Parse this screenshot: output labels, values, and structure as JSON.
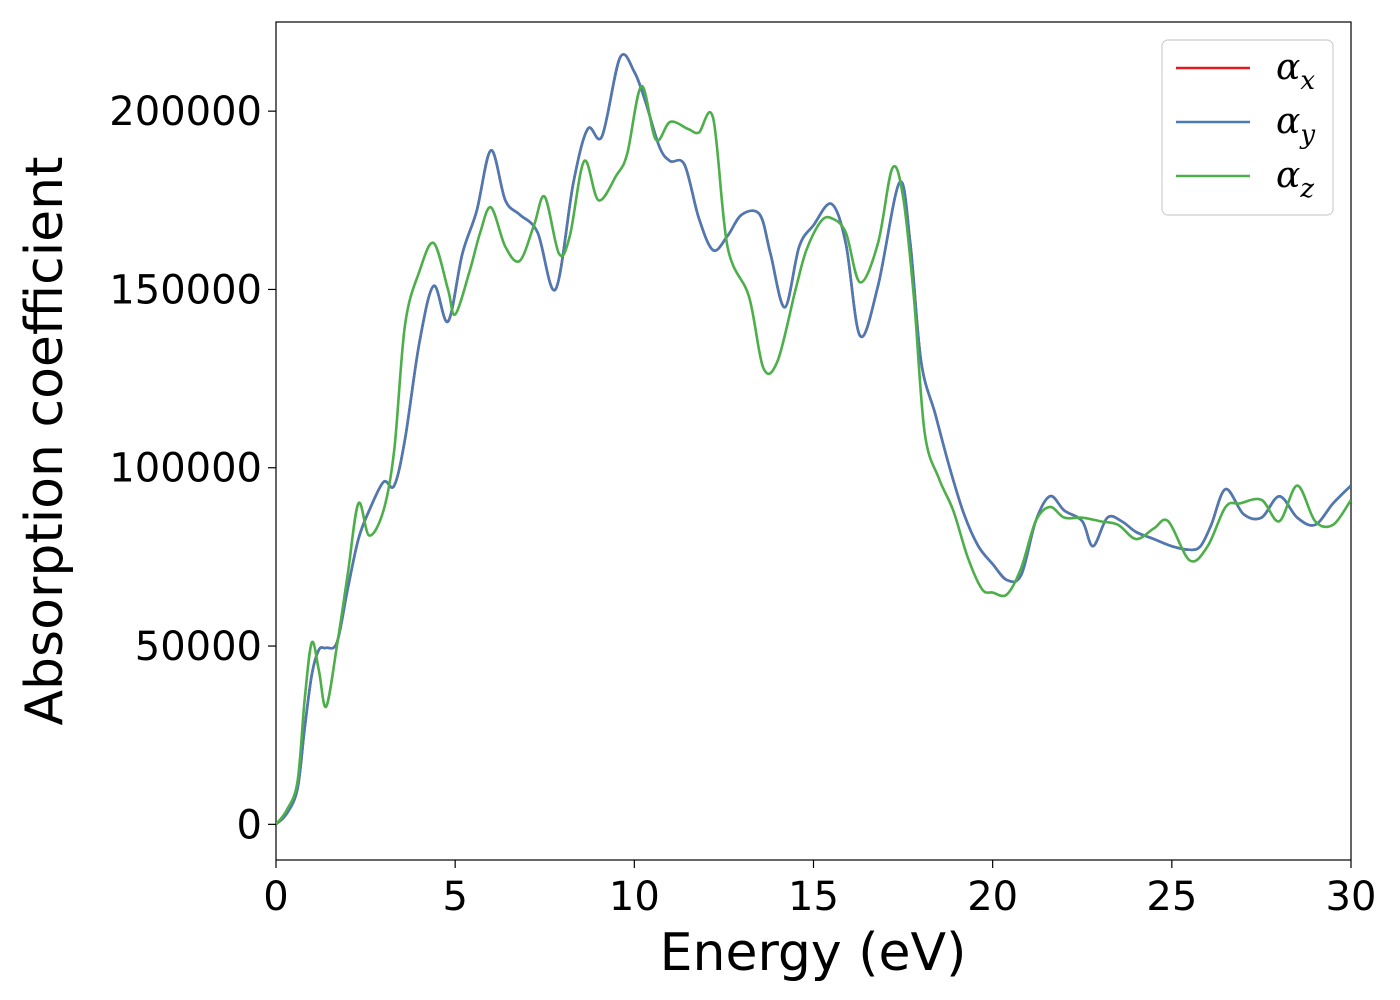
{
  "chart_data": {
    "type": "line",
    "xlabel": "Energy (eV)",
    "ylabel": "Absorption coefficient",
    "xlim": [
      0,
      30
    ],
    "ylim": [
      -10000,
      225000
    ],
    "x_ticks": [
      "0",
      "5",
      "10",
      "15",
      "20",
      "25",
      "30"
    ],
    "y_ticks": [
      "0",
      "50000",
      "100000",
      "150000",
      "200000"
    ],
    "grid": false,
    "legend_position": "top-right",
    "series": [
      {
        "name": "α",
        "subscript": "x",
        "color": "#e41a1c",
        "x": [
          0,
          0.3,
          0.6,
          0.8,
          1.0,
          1.2,
          1.4,
          1.7,
          2.0,
          2.3,
          2.6,
          3.0,
          3.3,
          3.6,
          4.0,
          4.4,
          4.8,
          5.2,
          5.6,
          6.0,
          6.4,
          6.8,
          7.3,
          7.8,
          8.3,
          8.7,
          9.1,
          9.6,
          10.0,
          10.3,
          10.7,
          11.0,
          11.4,
          11.8,
          12.2,
          12.6,
          13.0,
          13.5,
          13.8,
          14.2,
          14.6,
          15.0,
          15.5,
          15.9,
          16.3,
          16.8,
          17.4,
          17.7,
          18.0,
          18.4,
          18.8,
          19.2,
          19.6,
          20.0,
          20.4,
          20.8,
          21.2,
          21.6,
          22.0,
          22.5,
          22.8,
          23.2,
          23.6,
          24.0,
          24.5,
          25.0,
          25.5,
          25.8,
          26.1,
          26.5,
          27.0,
          27.5,
          28.0,
          28.5,
          29.0,
          29.5,
          30.0
        ],
        "values": [
          0,
          3000,
          10000,
          27000,
          42000,
          49000,
          49500,
          51000,
          66000,
          80000,
          88000,
          96000,
          95000,
          108000,
          135000,
          151000,
          141000,
          160000,
          172000,
          189000,
          175000,
          171000,
          166000,
          150000,
          180000,
          195000,
          193000,
          215000,
          211000,
          203000,
          190000,
          186000,
          185000,
          170000,
          161000,
          165000,
          171000,
          171000,
          160000,
          145000,
          162000,
          168000,
          174000,
          163000,
          137000,
          151000,
          180000,
          163000,
          130000,
          115000,
          100000,
          87000,
          78000,
          73000,
          68500,
          70000,
          85000,
          92000,
          88000,
          85000,
          78000,
          86000,
          85000,
          82000,
          80000,
          78000,
          77000,
          78000,
          84000,
          94000,
          87000,
          86000,
          92000,
          86000,
          84000,
          90000,
          95000
        ]
      },
      {
        "name": "α",
        "subscript": "y",
        "color": "#4a7bb5",
        "x": [
          0,
          0.3,
          0.6,
          0.8,
          1.0,
          1.2,
          1.4,
          1.7,
          2.0,
          2.3,
          2.6,
          3.0,
          3.3,
          3.6,
          4.0,
          4.4,
          4.8,
          5.2,
          5.6,
          6.0,
          6.4,
          6.8,
          7.3,
          7.8,
          8.3,
          8.7,
          9.1,
          9.6,
          10.0,
          10.3,
          10.7,
          11.0,
          11.4,
          11.8,
          12.2,
          12.6,
          13.0,
          13.5,
          13.8,
          14.2,
          14.6,
          15.0,
          15.5,
          15.9,
          16.3,
          16.8,
          17.4,
          17.7,
          18.0,
          18.4,
          18.8,
          19.2,
          19.6,
          20.0,
          20.4,
          20.8,
          21.2,
          21.6,
          22.0,
          22.5,
          22.8,
          23.2,
          23.6,
          24.0,
          24.5,
          25.0,
          25.5,
          25.8,
          26.1,
          26.5,
          27.0,
          27.5,
          28.0,
          28.5,
          29.0,
          29.5,
          30.0
        ],
        "values": [
          0,
          3000,
          10000,
          27000,
          42000,
          49000,
          49500,
          51000,
          66000,
          80000,
          88000,
          96000,
          95000,
          108000,
          135000,
          151000,
          141000,
          160000,
          172000,
          189000,
          175000,
          171000,
          166000,
          150000,
          180000,
          195000,
          193000,
          215000,
          211000,
          203000,
          190000,
          186000,
          185000,
          170000,
          161000,
          165000,
          171000,
          171000,
          160000,
          145000,
          162000,
          168000,
          174000,
          163000,
          137000,
          151000,
          180000,
          163000,
          130000,
          115000,
          100000,
          87000,
          78000,
          73000,
          68500,
          70000,
          85000,
          92000,
          88000,
          85000,
          78000,
          86000,
          85000,
          82000,
          80000,
          78000,
          77000,
          78000,
          84000,
          94000,
          87000,
          86000,
          92000,
          86000,
          84000,
          90000,
          95000
        ]
      },
      {
        "name": "α",
        "subscript": "z",
        "color": "#4daf4a",
        "x": [
          0,
          0.3,
          0.6,
          0.8,
          1.0,
          1.2,
          1.4,
          1.7,
          2.0,
          2.3,
          2.6,
          3.0,
          3.3,
          3.6,
          4.0,
          4.4,
          4.8,
          5.0,
          5.4,
          5.7,
          6.0,
          6.4,
          6.8,
          7.2,
          7.5,
          7.9,
          8.2,
          8.6,
          9.0,
          9.5,
          9.8,
          10.2,
          10.6,
          11.0,
          11.5,
          11.8,
          12.2,
          12.6,
          13.2,
          13.6,
          14.0,
          14.5,
          14.8,
          15.2,
          15.5,
          15.9,
          16.3,
          16.8,
          17.2,
          17.5,
          17.8,
          18.1,
          18.5,
          18.9,
          19.3,
          19.7,
          20.0,
          20.4,
          20.8,
          21.2,
          21.6,
          22.0,
          22.5,
          23.0,
          23.5,
          24.0,
          24.5,
          24.9,
          25.5,
          26.0,
          26.5,
          26.9,
          27.5,
          28.0,
          28.5,
          29.0,
          29.5,
          30.0
        ],
        "values": [
          0,
          4000,
          12000,
          35000,
          51000,
          43000,
          33000,
          50000,
          70000,
          90000,
          81000,
          88000,
          105000,
          140000,
          155000,
          163000,
          150000,
          143000,
          155000,
          166000,
          173000,
          162000,
          158000,
          168000,
          176000,
          160000,
          165000,
          186000,
          175000,
          182000,
          188000,
          207000,
          192000,
          197000,
          195000,
          194000,
          198000,
          162000,
          148000,
          128000,
          130000,
          150000,
          161000,
          169000,
          170000,
          166000,
          152000,
          163000,
          184000,
          176000,
          148000,
          110000,
          97000,
          88000,
          75000,
          66000,
          65000,
          64500,
          72000,
          85000,
          89000,
          86000,
          86000,
          85000,
          84000,
          80000,
          83000,
          85000,
          74000,
          78000,
          89000,
          90000,
          91000,
          85000,
          95000,
          85000,
          84000,
          91000
        ]
      }
    ]
  }
}
